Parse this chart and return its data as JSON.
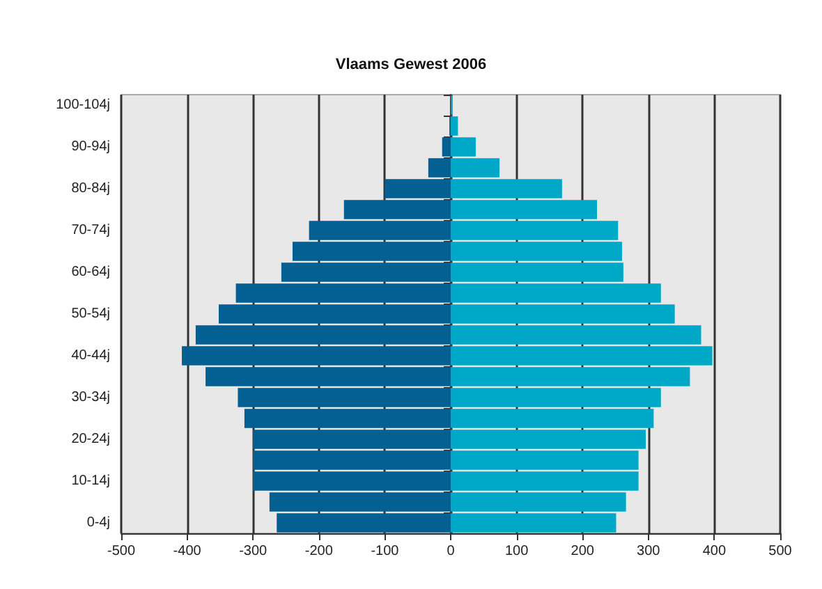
{
  "chart_data": {
    "type": "bar",
    "title": "Vlaams Gewest 2006",
    "orientation": "horizontal",
    "stacked": true,
    "categories": [
      "100-104j",
      null,
      "90-94j",
      null,
      "80-84j",
      null,
      "70-74j",
      null,
      "60-64j",
      null,
      "50-54j",
      null,
      "40-44j",
      null,
      "30-34j",
      null,
      "20-24j",
      null,
      "10-14j",
      null,
      "0-4j"
    ],
    "series": [
      {
        "color": "#045f93",
        "values": [
          0,
          -2,
          -13,
          -34,
          -100,
          -162,
          -215,
          -240,
          -257,
          -326,
          -352,
          -387,
          -408,
          -372,
          -323,
          -313,
          -300,
          -300,
          -300,
          -275,
          -264
        ]
      },
      {
        "color": "#00a8c8",
        "values": [
          2,
          11,
          38,
          74,
          169,
          222,
          254,
          260,
          262,
          319,
          340,
          380,
          397,
          363,
          319,
          308,
          296,
          285,
          285,
          266,
          251
        ]
      }
    ],
    "xlim": [
      -500,
      500
    ],
    "xticks": [
      -500,
      -400,
      -300,
      -200,
      -100,
      0,
      100,
      200,
      300,
      400,
      500
    ],
    "grid": "x"
  }
}
